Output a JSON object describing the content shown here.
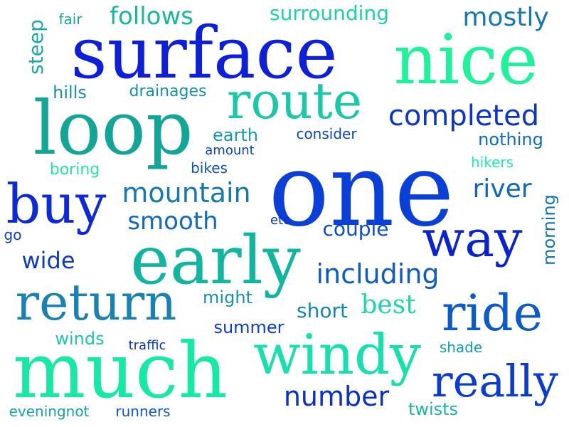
{
  "word_cloud": {
    "words": [
      {
        "text": "one",
        "color": "#0a3fd8"
      },
      {
        "text": "surface",
        "color": "#0d1fd8"
      },
      {
        "text": "nice",
        "color": "#1ef29a"
      },
      {
        "text": "loop",
        "color": "#13a696"
      },
      {
        "text": "early",
        "color": "#12b6a0"
      },
      {
        "text": "much",
        "color": "#16e8a6"
      },
      {
        "text": "return",
        "color": "#1a82b2"
      },
      {
        "text": "windy",
        "color": "#18e0ad"
      },
      {
        "text": "buy",
        "color": "#0c2ad6"
      },
      {
        "text": "way",
        "color": "#0b22d0"
      },
      {
        "text": "ride",
        "color": "#0b5bc9"
      },
      {
        "text": "route",
        "color": "#18c8a6"
      },
      {
        "text": "really",
        "color": "#0a3cd2"
      },
      {
        "text": "completed",
        "color": "#0b36c7"
      },
      {
        "text": "mountain",
        "color": "#1578b3"
      },
      {
        "text": "including",
        "color": "#0f5cc7"
      },
      {
        "text": "number",
        "color": "#0a30c8"
      },
      {
        "text": "smooth",
        "color": "#1169c0"
      },
      {
        "text": "mostly",
        "color": "#1478b6"
      },
      {
        "text": "follows",
        "color": "#18b89f"
      },
      {
        "text": "surrounding",
        "color": "#1bd2a6"
      },
      {
        "text": "river",
        "color": "#0f66bf"
      },
      {
        "text": "best",
        "color": "#1ad7a3"
      },
      {
        "text": "couple",
        "color": "#0e4ec4"
      },
      {
        "text": "wide",
        "color": "#0d3cc3"
      },
      {
        "text": "short",
        "color": "#1285b5"
      },
      {
        "text": "earth",
        "color": "#1598ad"
      },
      {
        "text": "hills",
        "color": "#1690ad"
      },
      {
        "text": "drainages",
        "color": "#1490b0"
      },
      {
        "text": "nothing",
        "color": "#0f6ac1"
      },
      {
        "text": "might",
        "color": "#1692ad"
      },
      {
        "text": "summer",
        "color": "#0b3fca"
      },
      {
        "text": "winds",
        "color": "#1bc8a2"
      },
      {
        "text": "twists",
        "color": "#19b5a2"
      },
      {
        "text": "runners",
        "color": "#0e58c2"
      },
      {
        "text": "consider",
        "color": "#0c47c4"
      },
      {
        "text": "amount",
        "color": "#0b3ec6"
      },
      {
        "text": "bikes",
        "color": "#0d52c2"
      },
      {
        "text": "boring",
        "color": "#24e69a"
      },
      {
        "text": "hikers",
        "color": "#22eca6"
      },
      {
        "text": "traffic",
        "color": "#0c34c6"
      },
      {
        "text": "shade",
        "color": "#12a0ae"
      },
      {
        "text": "steep",
        "color": "#1aa9a8"
      },
      {
        "text": "fair",
        "color": "#16a7a3"
      },
      {
        "text": "morning",
        "color": "#1574b4"
      },
      {
        "text": "etc",
        "color": "#0a2ec6"
      },
      {
        "text": "go",
        "color": "#0c40c6"
      },
      {
        "text": "eveningnot",
        "color": "#14a1ae"
      }
    ]
  }
}
